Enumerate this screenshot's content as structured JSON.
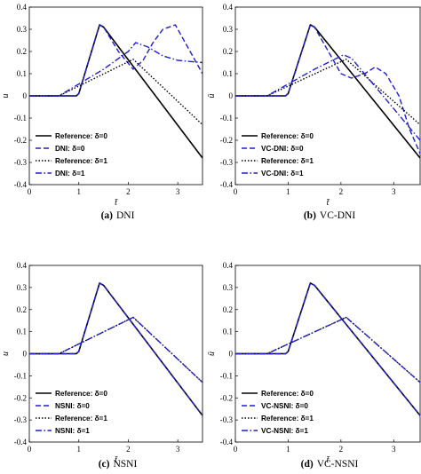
{
  "colors": {
    "reference": "#000000",
    "method": "#1f1fd0"
  },
  "chart_data": [
    {
      "type": "line",
      "caption_tag": "(a)",
      "caption_text": "DNI",
      "xlabel": "t̄",
      "ylabel": "u",
      "xlim": [
        0,
        3.5
      ],
      "ylim": [
        -0.4,
        0.4
      ],
      "xticks": [
        "0",
        "1",
        "2",
        "3"
      ],
      "yticks": [
        "-0.4",
        "-0.3",
        "-0.2",
        "-0.1",
        "0",
        "0.1",
        "0.2",
        "0.3",
        "0.4"
      ],
      "legend_position": "bottom-left",
      "legend": [
        "Reference: δ=0",
        "DNI: δ=0",
        "Reference: δ=1",
        "DNI: δ=1"
      ],
      "series": [
        {
          "name": "Reference: δ=0",
          "style": "solid",
          "color": "reference",
          "x": [
            0,
            0.95,
            1.0,
            1.42,
            1.5,
            3.5
          ],
          "y": [
            0,
            0,
            0.01,
            0.32,
            0.31,
            -0.28
          ]
        },
        {
          "name": "DNI: δ=0",
          "style": "dashed",
          "color": "method",
          "x": [
            0,
            0.95,
            1.0,
            1.42,
            1.5,
            1.8,
            2.1,
            2.3,
            2.5,
            2.7,
            2.95,
            3.2,
            3.5
          ],
          "y": [
            0,
            0,
            0.01,
            0.32,
            0.31,
            0.2,
            0.12,
            0.16,
            0.24,
            0.3,
            0.32,
            0.22,
            0.1
          ]
        },
        {
          "name": "Reference: δ=1",
          "style": "dotted",
          "color": "reference",
          "x": [
            0,
            0.6,
            2.1,
            3.5
          ],
          "y": [
            0,
            0,
            0.165,
            -0.13
          ]
        },
        {
          "name": "DNI: δ=1",
          "style": "dashdot",
          "color": "method",
          "x": [
            0,
            0.6,
            1.5,
            2.0,
            2.15,
            2.4,
            2.7,
            3.0,
            3.5
          ],
          "y": [
            0,
            0,
            0.12,
            0.2,
            0.24,
            0.22,
            0.18,
            0.16,
            0.15
          ]
        }
      ]
    },
    {
      "type": "line",
      "caption_tag": "(b)",
      "caption_text": "VC-DNI",
      "xlabel": "t̄",
      "ylabel": "ū",
      "xlim": [
        0,
        3.5
      ],
      "ylim": [
        -0.4,
        0.4
      ],
      "xticks": [
        "0",
        "1",
        "2",
        "3"
      ],
      "yticks": [
        "-0.4",
        "-0.3",
        "-0.2",
        "-0.1",
        "0",
        "0.1",
        "0.2",
        "0.3",
        "0.4"
      ],
      "legend_position": "bottom-left",
      "legend": [
        "Reference: δ=0",
        "VC-DNI: δ=0",
        "Reference: δ=1",
        "VC-DNI: δ=1"
      ],
      "series": [
        {
          "name": "Reference: δ=0",
          "style": "solid",
          "color": "reference",
          "x": [
            0,
            0.95,
            1.0,
            1.42,
            1.5,
            3.5
          ],
          "y": [
            0,
            0,
            0.01,
            0.32,
            0.31,
            -0.28
          ]
        },
        {
          "name": "VC-DNI: δ=0",
          "style": "dashed",
          "color": "method",
          "x": [
            0,
            0.95,
            1.0,
            1.42,
            1.5,
            2.0,
            2.2,
            2.45,
            2.65,
            2.85,
            3.1,
            3.3,
            3.5
          ],
          "y": [
            0,
            0,
            0.01,
            0.32,
            0.31,
            0.1,
            0.08,
            0.1,
            0.13,
            0.1,
            0.0,
            -0.15,
            -0.26
          ]
        },
        {
          "name": "Reference: δ=1",
          "style": "dotted",
          "color": "reference",
          "x": [
            0,
            0.6,
            2.1,
            3.5
          ],
          "y": [
            0,
            0,
            0.165,
            -0.13
          ]
        },
        {
          "name": "VC-DNI: δ=1",
          "style": "dashdot",
          "color": "method",
          "x": [
            0,
            0.6,
            1.5,
            2.05,
            2.2,
            3.5
          ],
          "y": [
            0,
            0,
            0.12,
            0.185,
            0.17,
            -0.2
          ]
        }
      ]
    },
    {
      "type": "line",
      "caption_tag": "(c)",
      "caption_text": "NSNI",
      "xlabel": "t̄",
      "ylabel": "u",
      "xlim": [
        0,
        3.5
      ],
      "ylim": [
        -0.4,
        0.4
      ],
      "xticks": [
        "0",
        "1",
        "2",
        "3"
      ],
      "yticks": [
        "-0.4",
        "-0.3",
        "-0.2",
        "-0.1",
        "0",
        "0.1",
        "0.2",
        "0.3",
        "0.4"
      ],
      "legend_position": "bottom-left",
      "legend": [
        "Reference: δ=0",
        "NSNI: δ=0",
        "Reference: δ=1",
        "NSNI: δ=1"
      ],
      "series": [
        {
          "name": "Reference: δ=0",
          "style": "solid",
          "color": "reference",
          "x": [
            0,
            0.95,
            1.0,
            1.42,
            1.5,
            3.5
          ],
          "y": [
            0,
            0,
            0.01,
            0.32,
            0.31,
            -0.28
          ]
        },
        {
          "name": "NSNI: δ=0",
          "style": "dashed",
          "color": "method",
          "x": [
            0,
            0.95,
            1.0,
            1.42,
            1.5,
            3.5
          ],
          "y": [
            0,
            0,
            0.01,
            0.32,
            0.31,
            -0.28
          ]
        },
        {
          "name": "Reference: δ=1",
          "style": "dotted",
          "color": "reference",
          "x": [
            0,
            0.6,
            2.1,
            3.5
          ],
          "y": [
            0,
            0,
            0.165,
            -0.13
          ]
        },
        {
          "name": "NSNI: δ=1",
          "style": "dashdot",
          "color": "method",
          "x": [
            0,
            0.6,
            2.1,
            3.5
          ],
          "y": [
            0,
            0,
            0.165,
            -0.13
          ]
        }
      ]
    },
    {
      "type": "line",
      "caption_tag": "(d)",
      "caption_text": "VC-NSNI",
      "xlabel": "t̄",
      "ylabel": "ū",
      "xlim": [
        0,
        3.5
      ],
      "ylim": [
        -0.4,
        0.4
      ],
      "xticks": [
        "0",
        "1",
        "2",
        "3"
      ],
      "yticks": [
        "-0.4",
        "-0.3",
        "-0.2",
        "-0.1",
        "0",
        "0.1",
        "0.2",
        "0.3",
        "0.4"
      ],
      "legend_position": "bottom-left",
      "legend": [
        "Reference: δ=0",
        "VC-NSNI: δ=0",
        "Reference: δ=1",
        "VC-NSNI: δ=1"
      ],
      "series": [
        {
          "name": "Reference: δ=0",
          "style": "solid",
          "color": "reference",
          "x": [
            0,
            0.95,
            1.0,
            1.42,
            1.5,
            3.5
          ],
          "y": [
            0,
            0,
            0.01,
            0.32,
            0.31,
            -0.28
          ]
        },
        {
          "name": "VC-NSNI: δ=0",
          "style": "dashed",
          "color": "method",
          "x": [
            0,
            0.95,
            1.0,
            1.42,
            1.5,
            3.5
          ],
          "y": [
            0,
            0,
            0.01,
            0.32,
            0.31,
            -0.28
          ]
        },
        {
          "name": "Reference: δ=1",
          "style": "dotted",
          "color": "reference",
          "x": [
            0,
            0.6,
            2.1,
            3.5
          ],
          "y": [
            0,
            0,
            0.165,
            -0.13
          ]
        },
        {
          "name": "VC-NSNI: δ=1",
          "style": "dashdot",
          "color": "method",
          "x": [
            0,
            0.6,
            2.1,
            3.5
          ],
          "y": [
            0,
            0,
            0.165,
            -0.13
          ]
        }
      ]
    }
  ]
}
